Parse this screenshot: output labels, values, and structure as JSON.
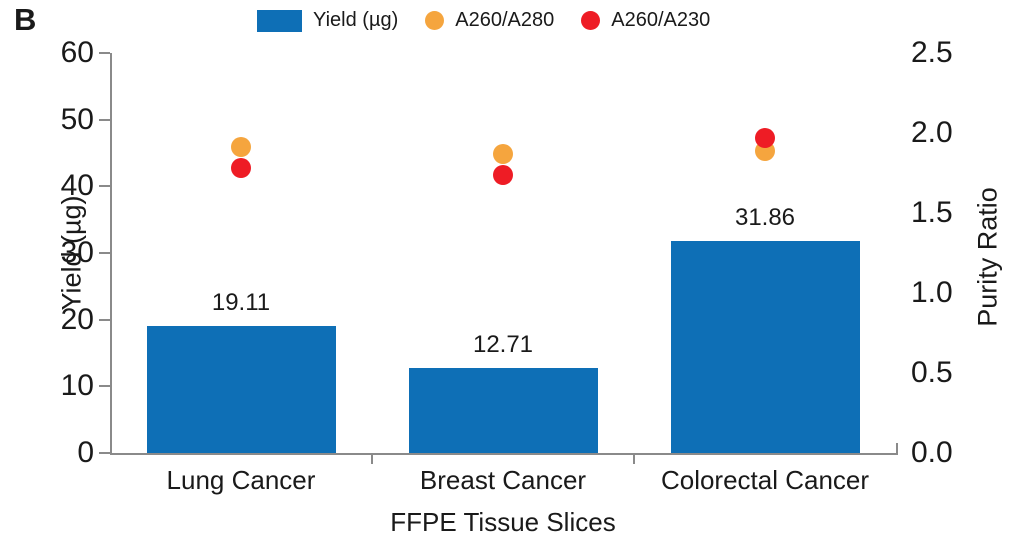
{
  "panel_label": "B",
  "colors": {
    "bar_blue": "#0e6fb6",
    "dot_orange": "#f5a53e",
    "dot_red": "#ee1c25",
    "axis_line": "#8a8a8a",
    "text": "#1a1a1a"
  },
  "legend": [
    {
      "label": "Yield (µg)",
      "marker": "rect",
      "color": "#0e6fb6"
    },
    {
      "label": "A260/A280",
      "marker": "circle",
      "color": "#f5a53e"
    },
    {
      "label": "A260/A230",
      "marker": "circle",
      "color": "#ee1c25"
    }
  ],
  "chart_data": {
    "type": "bar",
    "categories": [
      "Lung Cancer",
      "Breast Cancer",
      "Colorectal Cancer"
    ],
    "series": [
      {
        "name": "Yield (µg)",
        "kind": "bar",
        "axis": "left",
        "color": "#0e6fb6",
        "values": [
          19.11,
          12.71,
          31.86
        ],
        "data_labels": [
          "19.11",
          "12.71",
          "31.86"
        ]
      },
      {
        "name": "A260/A280",
        "kind": "scatter",
        "axis": "right",
        "color": "#f5a53e",
        "values": [
          1.91,
          1.87,
          1.89
        ]
      },
      {
        "name": "A260/A230",
        "kind": "scatter",
        "axis": "right",
        "color": "#ee1c25",
        "values": [
          1.78,
          1.74,
          1.97
        ]
      }
    ],
    "left_axis": {
      "label": "Yield (µg)",
      "min": 0,
      "max": 60,
      "ticks": [
        0,
        10,
        20,
        30,
        40,
        50,
        60
      ]
    },
    "right_axis": {
      "label": "Purity Ratio",
      "min": 0,
      "max": 2.5,
      "ticks": [
        "0.0",
        "0.5",
        "1.0",
        "1.5",
        "2.0",
        "2.5"
      ]
    },
    "x_axis": {
      "label": "FFPE Tissue Slices"
    },
    "grid": false,
    "legend_position": "top"
  }
}
